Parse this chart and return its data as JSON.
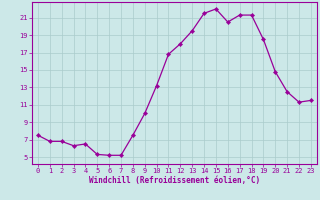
{
  "x": [
    0,
    1,
    2,
    3,
    4,
    5,
    6,
    7,
    8,
    9,
    10,
    11,
    12,
    13,
    14,
    15,
    16,
    17,
    18,
    19,
    20,
    21,
    22,
    23
  ],
  "y": [
    7.5,
    6.8,
    6.8,
    6.3,
    6.5,
    5.3,
    5.2,
    5.2,
    7.5,
    10.0,
    13.2,
    16.8,
    18.0,
    19.5,
    21.5,
    22.0,
    20.5,
    21.3,
    21.3,
    18.5,
    14.8,
    12.5,
    11.3,
    11.5
  ],
  "line_color": "#990099",
  "marker": "D",
  "marker_size": 2.2,
  "bg_color": "#cce8e8",
  "grid_color": "#aacccc",
  "xlabel": "Windchill (Refroidissement éolien,°C)",
  "xlim": [
    -0.5,
    23.5
  ],
  "ylim": [
    4.2,
    22.8
  ],
  "yticks": [
    5,
    7,
    9,
    11,
    13,
    15,
    17,
    19,
    21
  ],
  "xticks": [
    0,
    1,
    2,
    3,
    4,
    5,
    6,
    7,
    8,
    9,
    10,
    11,
    12,
    13,
    14,
    15,
    16,
    17,
    18,
    19,
    20,
    21,
    22,
    23
  ],
  "label_color": "#990099",
  "tick_color": "#990099",
  "spine_color": "#990099",
  "tick_fontsize": 5.0,
  "xlabel_fontsize": 5.5
}
